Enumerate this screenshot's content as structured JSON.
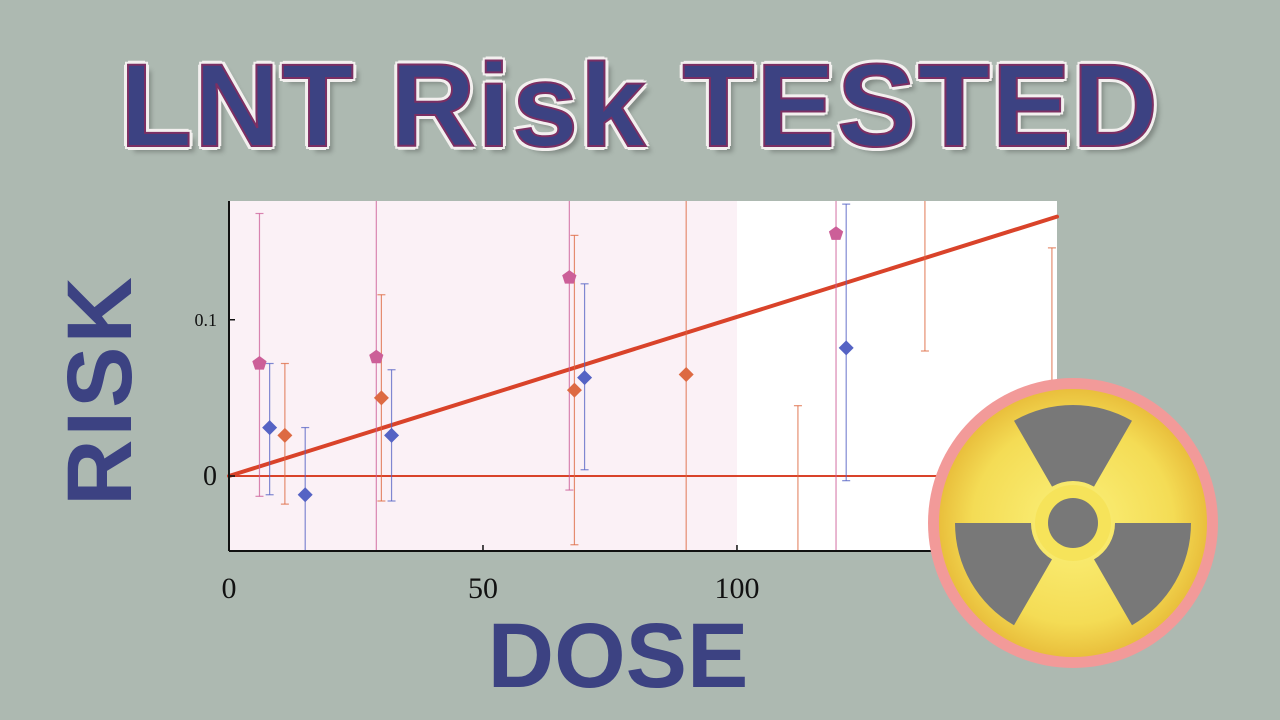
{
  "title": "LNT Risk TESTED",
  "chart_data": {
    "type": "scatter",
    "title": "LNT Risk TESTED",
    "xlabel": "DOSE",
    "ylabel": "RISK",
    "xlim": [
      0,
      163
    ],
    "ylim": [
      -0.024,
      0.088
    ],
    "x_ticks": [
      {
        "value": 0,
        "label": "0"
      },
      {
        "value": 50,
        "label": "50"
      },
      {
        "value": 100,
        "label": "100"
      }
    ],
    "y_ticks": [
      {
        "value": 0,
        "label": "0"
      },
      {
        "value": 0.05,
        "label": "0.1"
      }
    ],
    "shaded_region": {
      "x": [
        0,
        100
      ],
      "color": "#fbf1f6"
    },
    "grid": false,
    "legend": "none",
    "lnt_line": {
      "x": [
        0,
        163
      ],
      "y": [
        0,
        0.083
      ],
      "color": "#d9432a"
    },
    "zero_line": {
      "y": 0,
      "color": "#d9432a"
    },
    "series": [
      {
        "marker": "pentagon",
        "color": "#cc5f98",
        "points": [
          {
            "x": 6,
            "y": 0.036,
            "lo": -0.0065,
            "hi": 0.084
          },
          {
            "x": 29,
            "y": 0.038,
            "lo": -0.024,
            "hi": 0.088
          },
          {
            "x": 67,
            "y": 0.0635,
            "lo": -0.0045,
            "hi": 0.088
          },
          {
            "x": 119.5,
            "y": 0.0775,
            "lo": -0.024,
            "hi": 0.088
          }
        ]
      },
      {
        "marker": "diamond",
        "color": "#dd6a42",
        "points": [
          {
            "x": 11,
            "y": 0.013,
            "lo": -0.009,
            "hi": 0.036
          },
          {
            "x": 30,
            "y": 0.025,
            "lo": -0.008,
            "hi": 0.058
          },
          {
            "x": 68,
            "y": 0.0275,
            "lo": -0.022,
            "hi": 0.077
          },
          {
            "x": 90,
            "y": 0.0325,
            "lo": -0.024,
            "hi": 0.088
          },
          {
            "x": 112,
            "y": null,
            "lo": -0.024,
            "hi": 0.0225
          },
          {
            "x": 137,
            "y": null,
            "lo": 0.04,
            "hi": 0.088
          },
          {
            "x": 162,
            "y": null,
            "lo": -0.024,
            "hi": 0.073
          }
        ]
      },
      {
        "marker": "diamond",
        "color": "#5563c4",
        "points": [
          {
            "x": 8,
            "y": 0.0155,
            "lo": -0.006,
            "hi": 0.036
          },
          {
            "x": 15,
            "y": -0.006,
            "lo": -0.024,
            "hi": 0.0155
          },
          {
            "x": 32,
            "y": 0.013,
            "lo": -0.008,
            "hi": 0.034
          },
          {
            "x": 70,
            "y": 0.0315,
            "lo": 0.002,
            "hi": 0.0615
          },
          {
            "x": 121.5,
            "y": 0.041,
            "lo": -0.0015,
            "hi": 0.087
          }
        ]
      }
    ]
  },
  "colors": {
    "background": "#adb9b1",
    "title_fill": "#3c4282",
    "title_outline": "#7c2f63",
    "hazard_yellow": "#f6e35a",
    "hazard_gray": "#7a7a7a",
    "hazard_rim": "#f29a99"
  },
  "icons": {
    "hazard": "radiation-hazard-icon"
  }
}
